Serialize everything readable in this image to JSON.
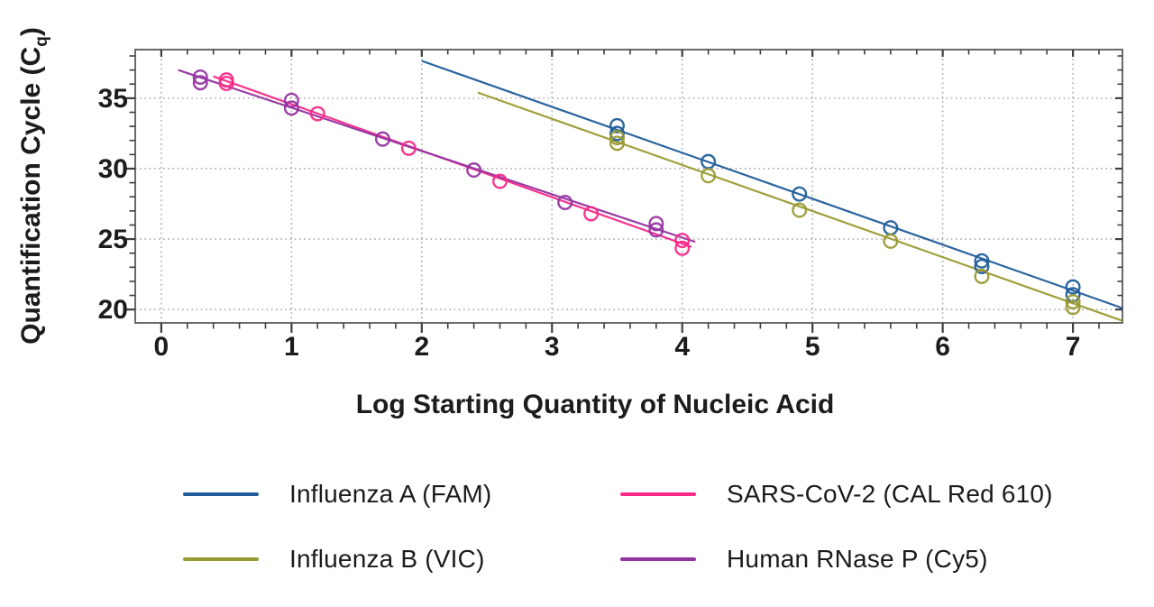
{
  "figure": {
    "background": "#ffffff"
  },
  "chart_data": {
    "type": "scatter",
    "title": "",
    "xlabel": "Log Starting Quantity of Nucleic Acid",
    "ylabel": "Quantification Cycle (Cq)",
    "ylabel_parts": {
      "prefix": "Quantification Cycle (C",
      "subscript": "q",
      "suffix": ")"
    },
    "xlim": [
      -0.2,
      7.38
    ],
    "ylim": [
      19.05,
      38.45
    ],
    "xticks": [
      0,
      1,
      2,
      3,
      4,
      5,
      6,
      7
    ],
    "yticks": [
      20,
      25,
      30,
      35
    ],
    "x_minor_step": 0.2,
    "y_minor_step": 1,
    "grid": "dotted-at-major-ticks",
    "legend_position": "bottom",
    "style": {
      "frame": "#6a6a6a",
      "tick": "#3f3f3f",
      "grid": "#9c9c9c",
      "label": "#1c1c1c",
      "legend_text": "#1b1b1b"
    },
    "series": [
      {
        "name": "Influenza A (FAM)",
        "color": "#1f5c99",
        "marker": "open-circle",
        "points": [
          [
            3.5,
            33.05
          ],
          [
            3.5,
            32.5
          ],
          [
            4.2,
            30.5
          ],
          [
            4.9,
            28.2
          ],
          [
            5.6,
            25.8
          ],
          [
            6.3,
            23.45
          ],
          [
            6.3,
            23.05
          ],
          [
            7.0,
            21.6
          ],
          [
            7.0,
            21.05
          ]
        ],
        "trendline": {
          "x1": 2.0,
          "y1": 37.65,
          "x2": 7.38,
          "y2": 20.1
        }
      },
      {
        "name": "Influenza B (VIC)",
        "color": "#9a9a32",
        "marker": "open-circle",
        "points": [
          [
            3.5,
            32.2
          ],
          [
            3.5,
            31.8
          ],
          [
            4.2,
            29.5
          ],
          [
            4.9,
            27.05
          ],
          [
            5.6,
            24.85
          ],
          [
            6.3,
            22.35
          ],
          [
            7.0,
            20.55
          ],
          [
            7.0,
            20.15
          ]
        ],
        "trendline": {
          "x1": 2.43,
          "y1": 35.4,
          "x2": 7.38,
          "y2": 19.2
        }
      },
      {
        "name": "SARS-CoV-2 (CAL Red 610)",
        "color": "#f72988",
        "marker": "open-circle",
        "points": [
          [
            0.5,
            36.3
          ],
          [
            0.5,
            36.05
          ],
          [
            1.2,
            33.9
          ],
          [
            1.9,
            31.45
          ],
          [
            2.6,
            29.1
          ],
          [
            3.3,
            26.8
          ],
          [
            4.0,
            24.9
          ],
          [
            4.0,
            24.35
          ]
        ],
        "trendline": {
          "x1": 0.4,
          "y1": 36.55,
          "x2": 4.07,
          "y2": 24.45
        }
      },
      {
        "name": "Human RNase P (Cy5)",
        "color": "#9333a0",
        "marker": "open-circle",
        "points": [
          [
            0.3,
            36.5
          ],
          [
            0.3,
            36.1
          ],
          [
            1.0,
            34.85
          ],
          [
            1.0,
            34.3
          ],
          [
            1.7,
            32.1
          ],
          [
            2.4,
            29.9
          ],
          [
            3.1,
            27.6
          ],
          [
            3.8,
            26.1
          ],
          [
            3.8,
            25.65
          ]
        ],
        "trendline": {
          "x1": 0.13,
          "y1": 37.0,
          "x2": 4.1,
          "y2": 24.8
        }
      }
    ]
  },
  "legend_layout": [
    [
      0,
      1
    ],
    [
      2,
      3
    ]
  ]
}
